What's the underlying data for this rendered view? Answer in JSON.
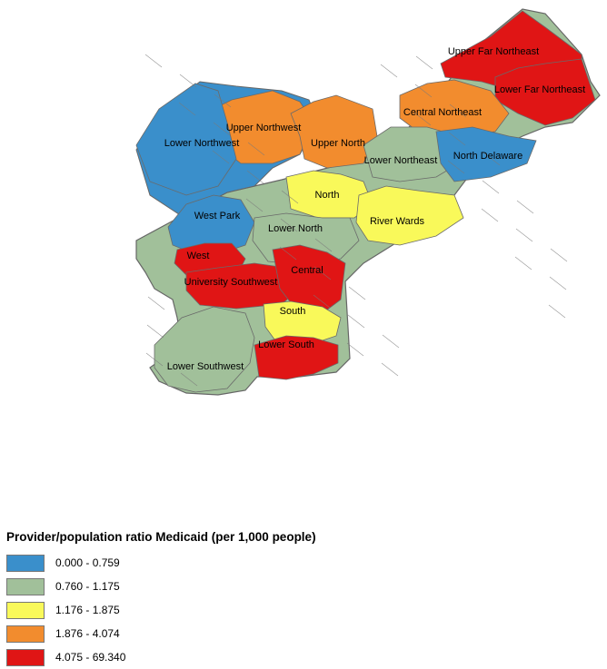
{
  "map": {
    "regions": [
      {
        "name": "Upper Far Northeast",
        "cls": 4
      },
      {
        "name": "Lower Far Northeast",
        "cls": 4
      },
      {
        "name": "Central Northeast",
        "cls": 3
      },
      {
        "name": "Upper Northwest",
        "cls": 3
      },
      {
        "name": "Upper North",
        "cls": 3
      },
      {
        "name": "Lower Northwest",
        "cls": 0
      },
      {
        "name": "Lower Northeast",
        "cls": 1
      },
      {
        "name": "North Delaware",
        "cls": 0
      },
      {
        "name": "North",
        "cls": 2
      },
      {
        "name": "West Park",
        "cls": 0
      },
      {
        "name": "Lower North",
        "cls": 1
      },
      {
        "name": "River Wards",
        "cls": 2
      },
      {
        "name": "West",
        "cls": 4
      },
      {
        "name": "University Southwest",
        "cls": 4
      },
      {
        "name": "Central",
        "cls": 4
      },
      {
        "name": "South",
        "cls": 2
      },
      {
        "name": "Lower South",
        "cls": 4
      },
      {
        "name": "Lower Southwest",
        "cls": 1
      }
    ]
  },
  "legend": {
    "title": "Provider/population ratio Medicaid (per 1,000 people)",
    "items": [
      {
        "label": "0.000 - 0.759",
        "color": "#3a8fcb"
      },
      {
        "label": "0.760 - 1.175",
        "color": "#a1c09a"
      },
      {
        "label": "1.176 - 1.875",
        "color": "#f9f95a"
      },
      {
        "label": "1.876 - 4.074",
        "color": "#f28c2e"
      },
      {
        "label": "4.075 - 69.340",
        "color": "#e01515"
      }
    ]
  }
}
